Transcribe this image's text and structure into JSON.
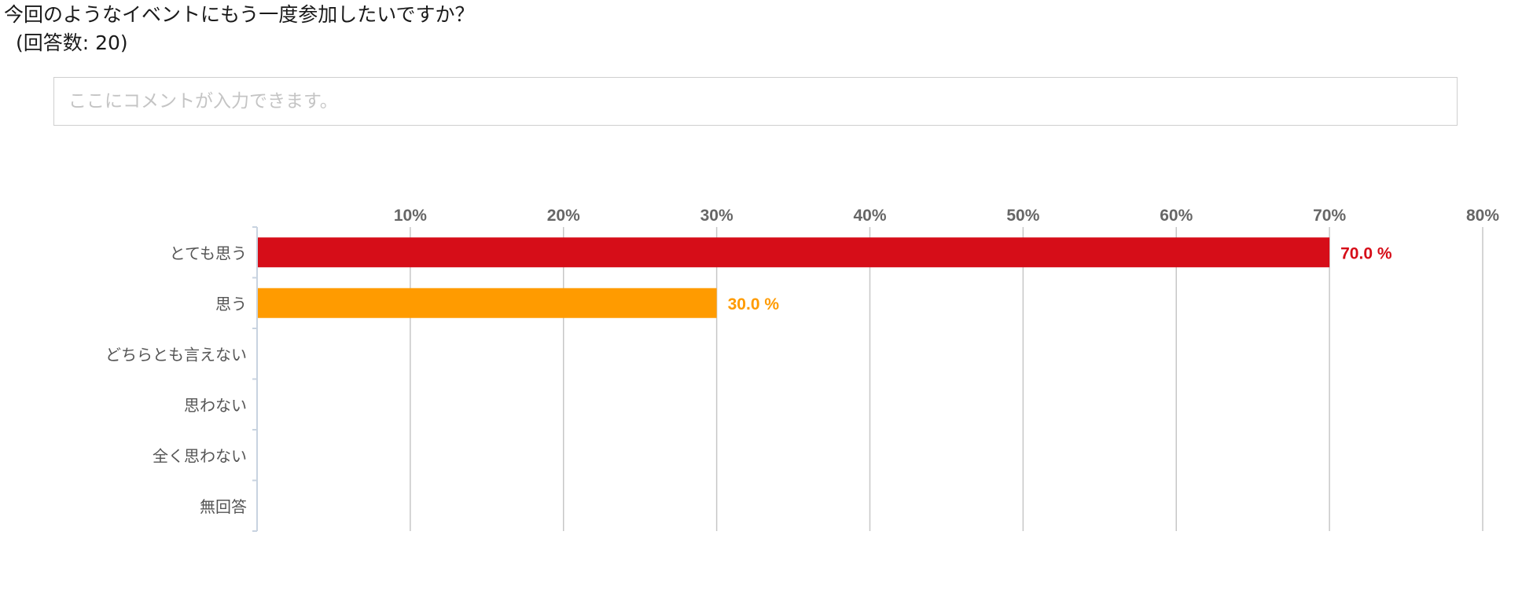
{
  "survey": {
    "question": "今回のようなイベントにもう一度参加したいですか？",
    "response_count": "(回答数: 20)",
    "comment_placeholder": "ここにコメントが入力できます。"
  },
  "chart_data": {
    "type": "bar",
    "orientation": "horizontal",
    "categories": [
      "とても思う",
      "思う",
      "どちらとも言えない",
      "思わない",
      "全く思わない",
      "無回答"
    ],
    "values": [
      70.0,
      30.0,
      0,
      0,
      0,
      0
    ],
    "value_labels": [
      "70.0 %",
      "30.0 %",
      "",
      "",
      "",
      ""
    ],
    "colors": [
      "#d60d18",
      "#ff9b00",
      "",
      "",
      "",
      ""
    ],
    "x_ticks": [
      "10%",
      "20%",
      "30%",
      "40%",
      "50%",
      "60%",
      "70%",
      "80%"
    ],
    "xlim": [
      0,
      80
    ],
    "grid": true,
    "axis_color": "#c8d3e0",
    "grid_color": "#c7c7c7",
    "tick_color": "#666666"
  }
}
